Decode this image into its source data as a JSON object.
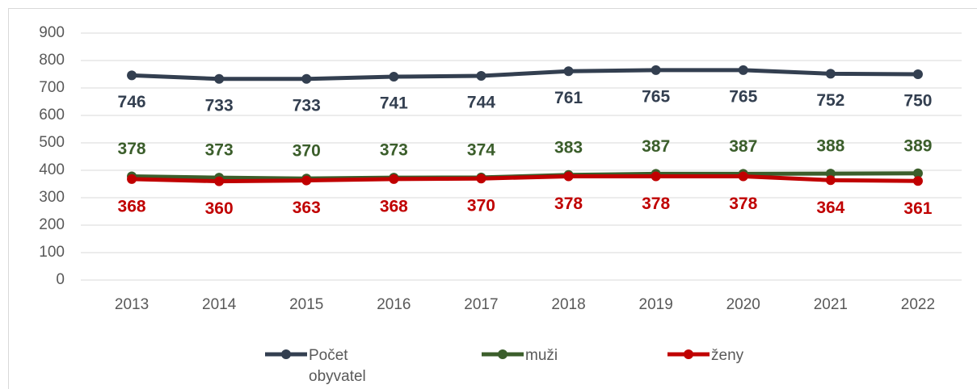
{
  "chart_data": {
    "type": "line",
    "categories": [
      "2013",
      "2014",
      "2015",
      "2016",
      "2017",
      "2018",
      "2019",
      "2020",
      "2021",
      "2022"
    ],
    "series": [
      {
        "name": "Počet obyvatel",
        "color": "#333f50",
        "values": [
          746,
          733,
          733,
          741,
          744,
          761,
          765,
          765,
          752,
          750
        ]
      },
      {
        "name": "muži",
        "color": "#3b5e2b",
        "values": [
          378,
          373,
          370,
          373,
          374,
          383,
          387,
          387,
          388,
          389
        ]
      },
      {
        "name": "ženy",
        "color": "#c00000",
        "values": [
          368,
          360,
          363,
          368,
          370,
          378,
          378,
          378,
          364,
          361
        ]
      }
    ],
    "ylim": [
      0,
      900
    ],
    "yticks": [
      0,
      100,
      200,
      300,
      400,
      500,
      600,
      700,
      800,
      900
    ],
    "grid": true,
    "legend": "bottom"
  }
}
